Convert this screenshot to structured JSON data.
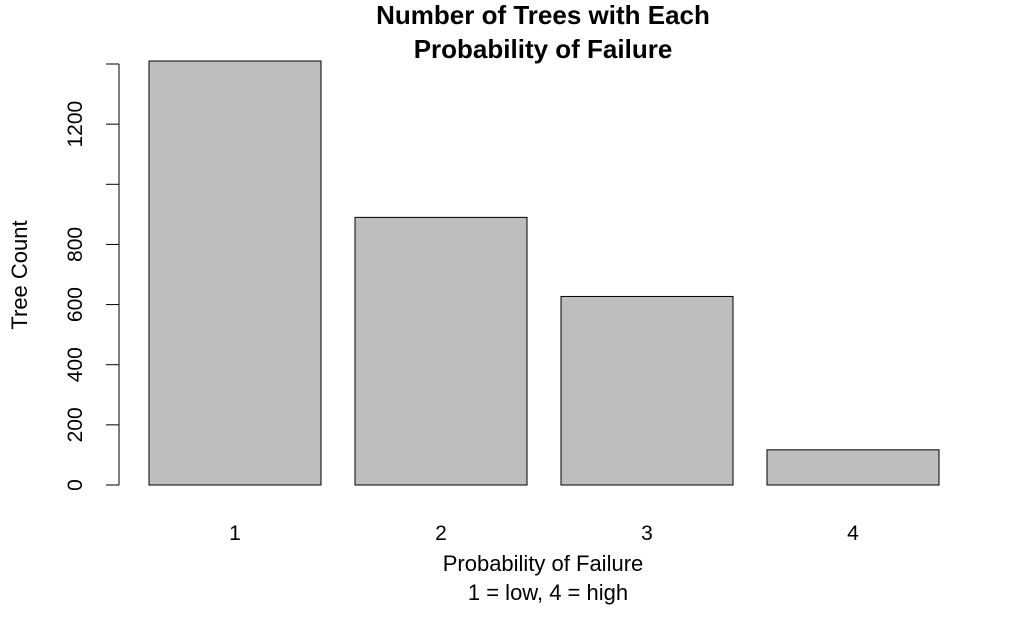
{
  "chart_data": {
    "type": "bar",
    "title_lines": [
      "Number of Trees with Each",
      "Probability of Failure"
    ],
    "xlabel": "Probability of Failure",
    "xlabel_sub": "1 = low, 4 = high",
    "ylabel": "Tree Count",
    "categories": [
      "1",
      "2",
      "3",
      "4"
    ],
    "values": [
      1410,
      890,
      627,
      117
    ],
    "ylim": [
      0,
      1410
    ],
    "yticks": [
      0,
      200,
      400,
      600,
      800,
      1000,
      1200,
      1400
    ],
    "ytick_labels": [
      "0",
      "200",
      "400",
      "600",
      "800",
      "",
      "1200",
      ""
    ],
    "bar_color": "#bebebe",
    "bar_border_color": "#000000",
    "grid": false,
    "legend": "none"
  }
}
